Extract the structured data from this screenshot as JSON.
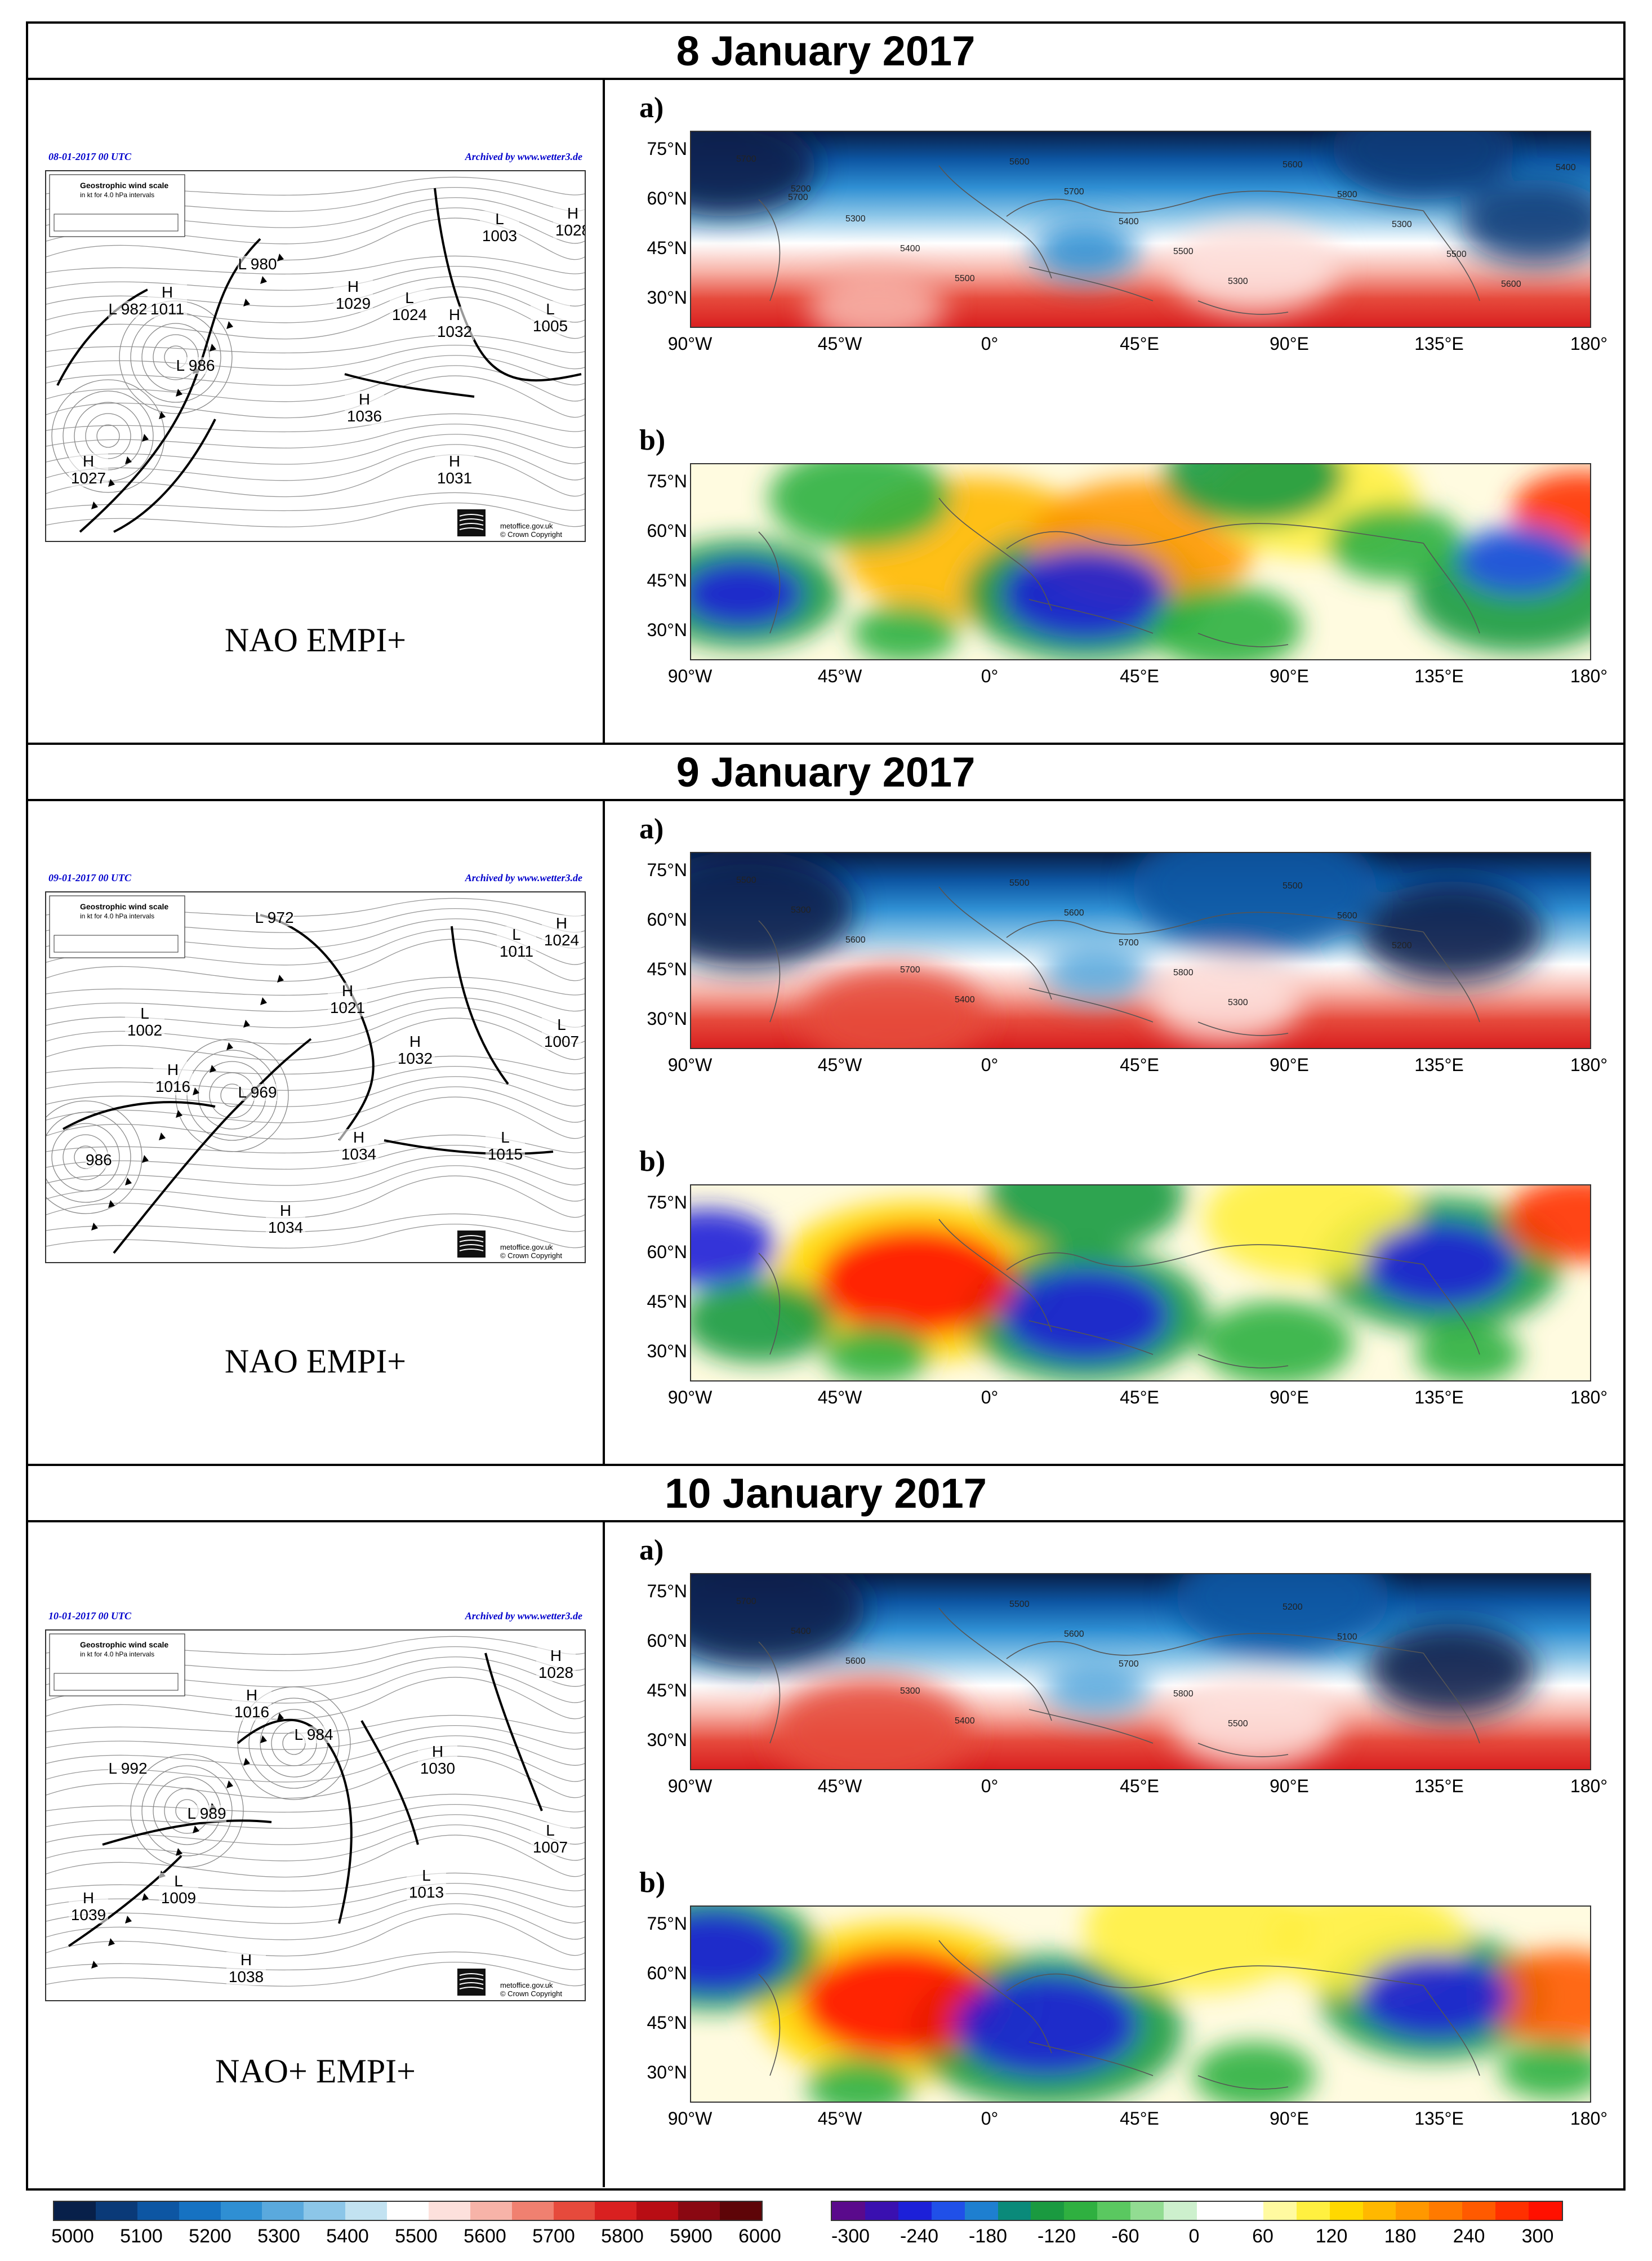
{
  "panels": [
    {
      "title": "8 January 2017",
      "regime": "NAO EMPI+",
      "chart_date": "08-01-2017 00 UTC",
      "archived": "Archived by www.wetter3.de",
      "pressure_labels": [
        "L 980",
        "H 1029",
        "L 1024",
        "H 1032",
        "L 1003",
        "H 1028",
        "L 982",
        "H 1011",
        "L 986",
        "H 1036",
        "L 1005",
        "H 1027",
        "H 1031"
      ],
      "contours_a": [
        "5700",
        "5200",
        "5300",
        "5400",
        "5500",
        "5600",
        "5700",
        "5400",
        "5500",
        "5300",
        "5600",
        "5800",
        "5300",
        "5500",
        "5600",
        "5400",
        "5700"
      ]
    },
    {
      "title": "9 January 2017",
      "regime": "NAO EMPI+",
      "chart_date": "09-01-2017 00 UTC",
      "archived": "Archived by www.wetter3.de",
      "pressure_labels": [
        "L 972",
        "H 1021",
        "H 1032",
        "L 1011",
        "H 1024",
        "L 1002",
        "H 1016",
        "L 969",
        "H 1034",
        "L 1015",
        "L 1007",
        "986",
        "H 1034"
      ],
      "contours_a": [
        "5500",
        "5300",
        "5600",
        "5700",
        "5400",
        "5500",
        "5600",
        "5700",
        "5800",
        "5300",
        "5500",
        "5600",
        "5200"
      ]
    },
    {
      "title": "10 January 2017",
      "regime": "NAO+ EMPI+",
      "chart_date": "10-01-2017 00 UTC",
      "archived": "Archived by www.wetter3.de",
      "pressure_labels": [
        "H 1016",
        "L 984",
        "H 1030",
        "H 1028",
        "L 992",
        "L 989",
        "L 1009",
        "H 1039",
        "H 1038",
        "L 1013",
        "L 1007"
      ],
      "contours_a": [
        "5700",
        "5400",
        "5600",
        "5300",
        "5400",
        "5500",
        "5600",
        "5700",
        "5800",
        "5500",
        "5200",
        "5100"
      ]
    }
  ],
  "sublabels": {
    "a": "a)",
    "b": "b)"
  },
  "metoffice_text": "metoffice.gov.uk\n© Crown Copyright",
  "lat_labels": [
    "75°N",
    "60°N",
    "45°N",
    "30°N"
  ],
  "lon_labels": [
    "90°W",
    "45°W",
    "0°",
    "45°E",
    "90°E",
    "135°E",
    "180°"
  ],
  "colorbar_left": {
    "labels": [
      "5000",
      "5100",
      "5200",
      "5300",
      "5400",
      "5500",
      "5600",
      "5700",
      "5800",
      "5900",
      "6000"
    ],
    "colors": [
      "#08204a",
      "#0a3a78",
      "#0d56a3",
      "#1672c2",
      "#2f8fd3",
      "#5aa9dd",
      "#8cc6e8",
      "#c2e2f1",
      "#ffffff",
      "#fde0dc",
      "#f7b3a8",
      "#f08070",
      "#e64a3c",
      "#d92020",
      "#b80d14",
      "#8a0812",
      "#5e0508"
    ]
  },
  "colorbar_right": {
    "labels": [
      "-300",
      "-240",
      "-180",
      "-120",
      "-60",
      "0",
      "60",
      "120",
      "180",
      "240",
      "300"
    ],
    "colors": [
      "#5a0a8c",
      "#3a10b0",
      "#1c20d8",
      "#2050e8",
      "#1e7fd0",
      "#0a8a7a",
      "#1a9a40",
      "#2fb040",
      "#5ac860",
      "#92dc92",
      "#cdf0cd",
      "#ffffff",
      "#ffffff",
      "#fffaa0",
      "#fff040",
      "#ffd800",
      "#ffb800",
      "#ff9800",
      "#ff7a00",
      "#ff5a00",
      "#ff3000",
      "#ff1000"
    ]
  }
}
